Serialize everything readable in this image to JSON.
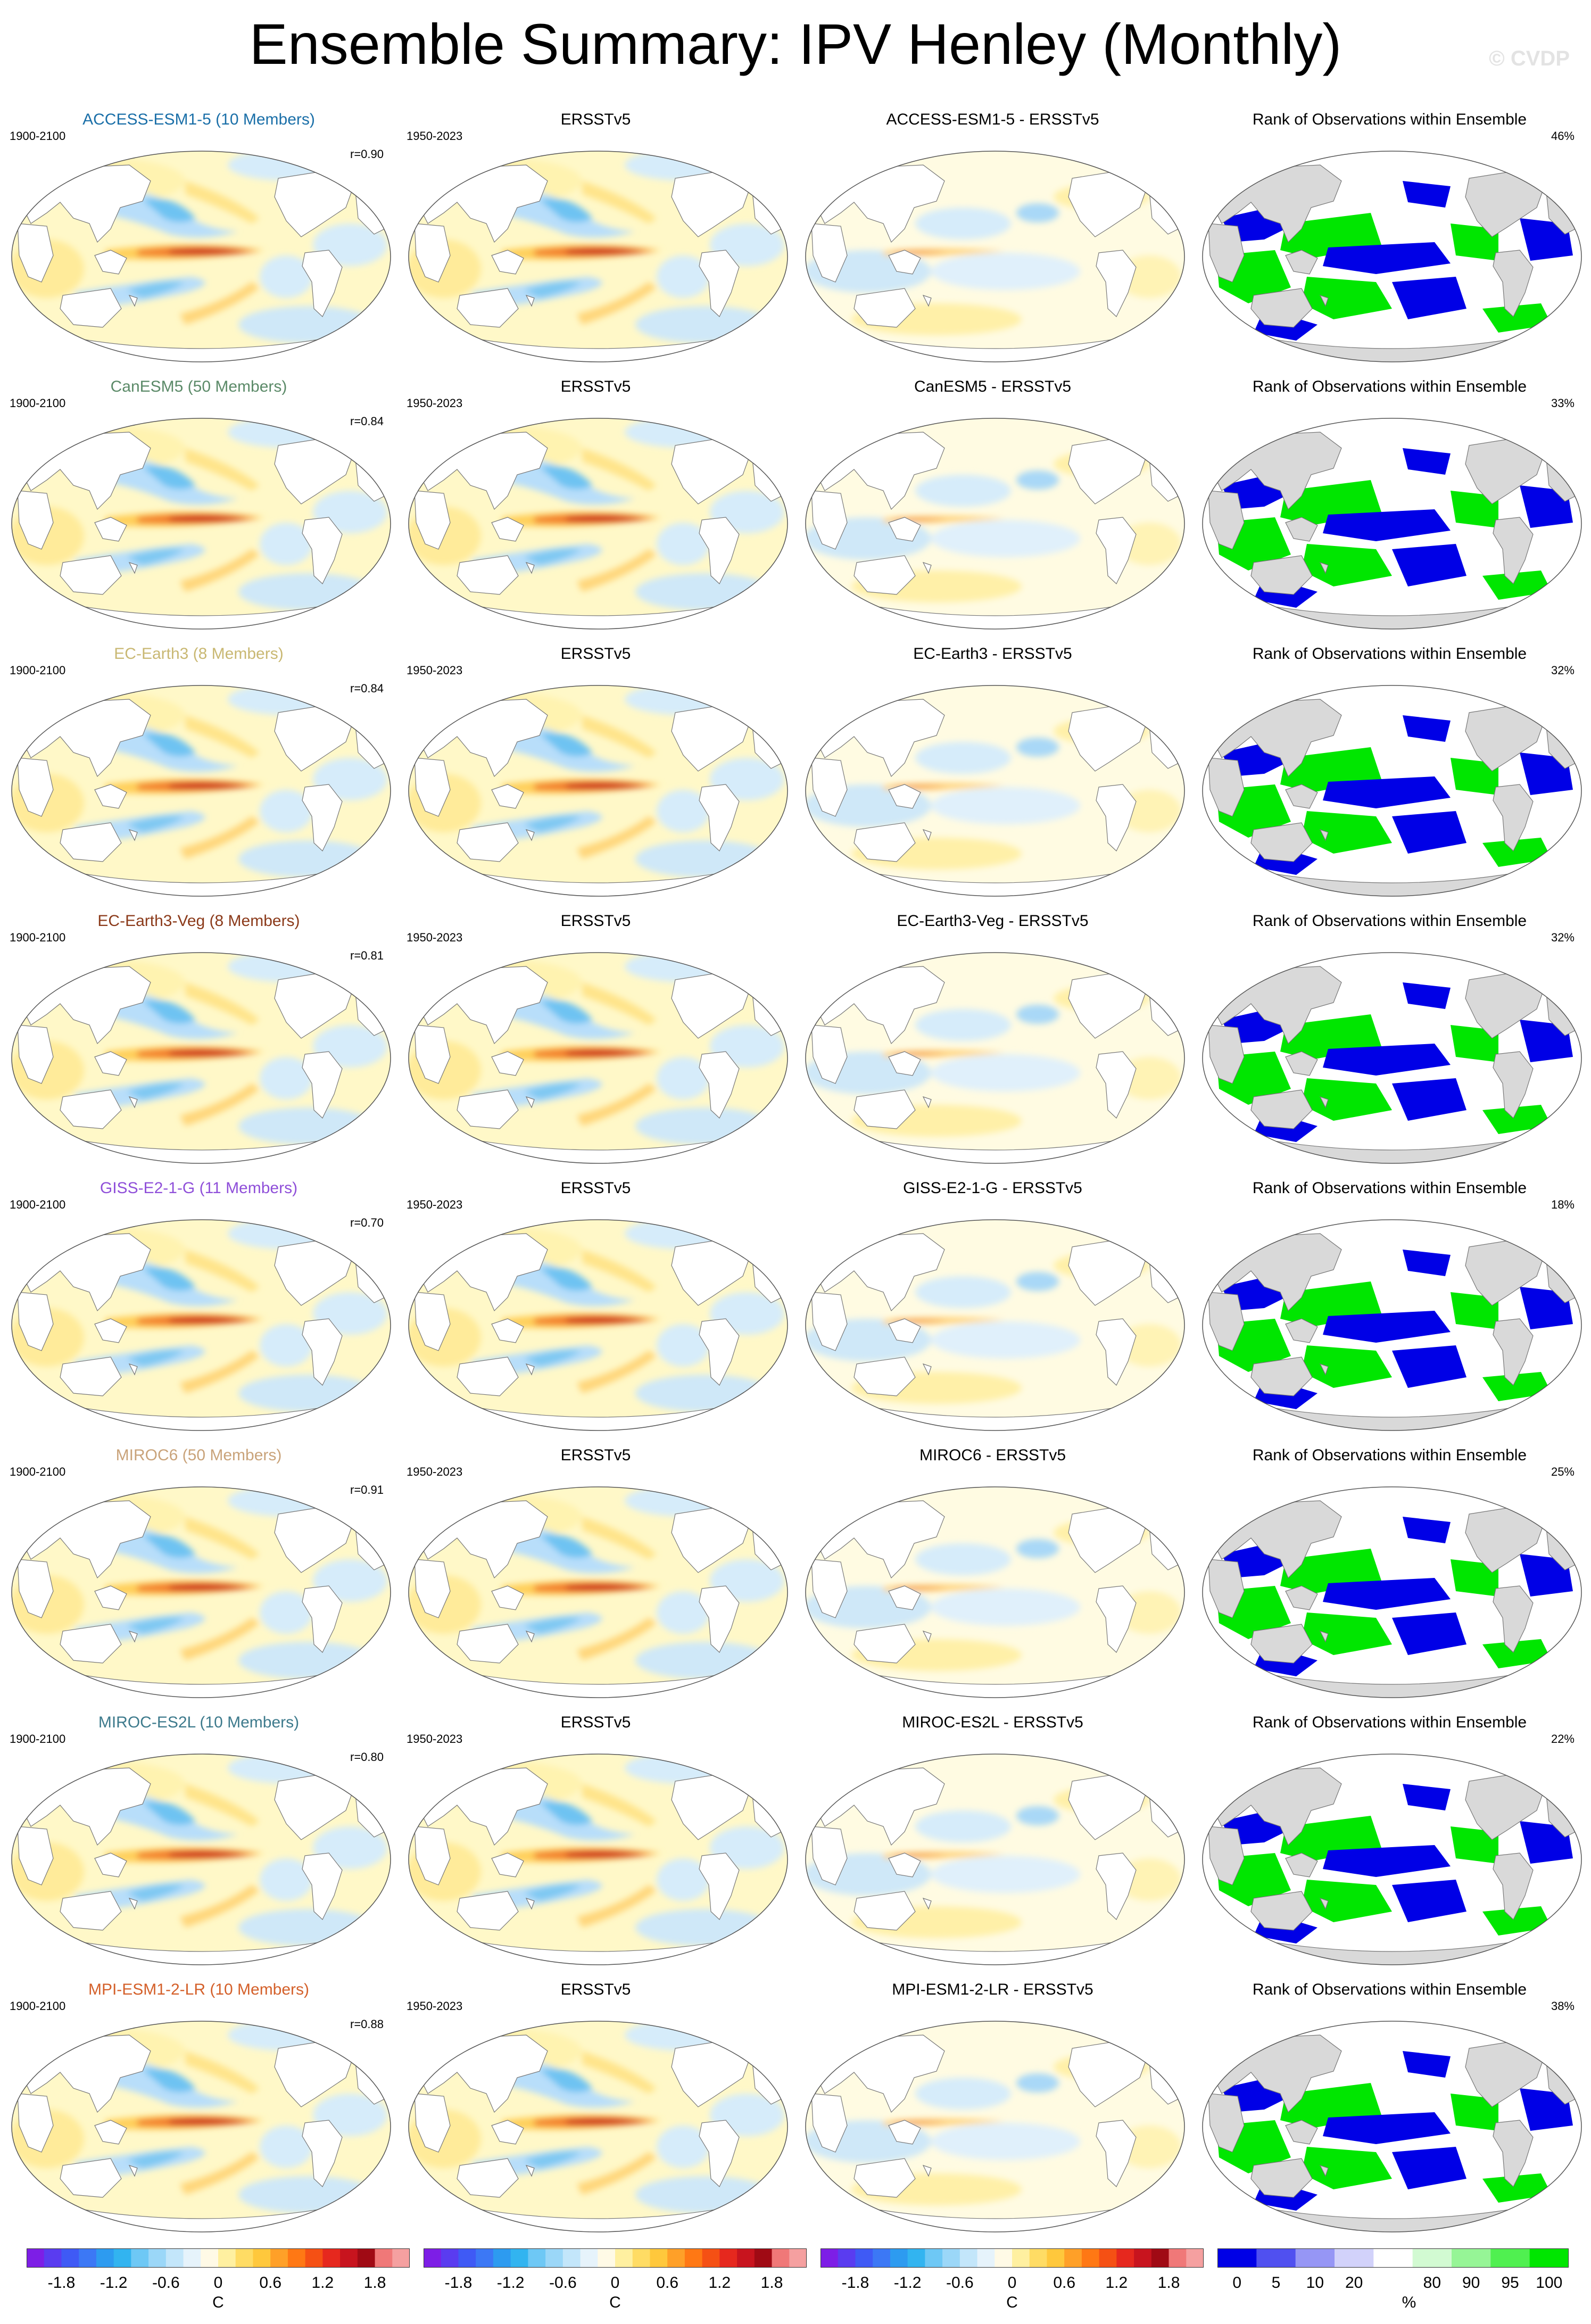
{
  "page": {
    "title": "Ensemble Summary: IPV Henley (Monthly)",
    "watermark": "© CVDP"
  },
  "colors": {
    "cold_strong": "#1e9ee8",
    "cold_mid": "#8ccdf5",
    "cold_light": "#cfe8f8",
    "warm_light": "#fff6b0",
    "warm_mid": "#f8c14a",
    "warm_strong": "#e8421c",
    "hot": "#b50010",
    "rank_low": "#0000e6",
    "rank_high": "#00f000",
    "land": "#d9d9d9"
  },
  "rows": [
    {
      "model": "ACCESS-ESM1-5 (10 Members)",
      "model_color": "#1a6fa8",
      "model_period": "1900-2100",
      "obs_period": "1950-2023",
      "corr": "r=0.90",
      "obs_title": "ERSSTv5",
      "diff_title": "ACCESS-ESM1-5 - ERSSTv5",
      "rank_title": "Rank of Observations within Ensemble",
      "rank_pct": "46%"
    },
    {
      "model": "CanESM5 (50 Members)",
      "model_color": "#5b8a68",
      "model_period": "1900-2100",
      "obs_period": "1950-2023",
      "corr": "r=0.84",
      "obs_title": "ERSSTv5",
      "diff_title": "CanESM5 - ERSSTv5",
      "rank_title": "Rank of Observations within Ensemble",
      "rank_pct": "33%"
    },
    {
      "model": "EC-Earth3 (8 Members)",
      "model_color": "#c9b873",
      "model_period": "1900-2100",
      "obs_period": "1950-2023",
      "corr": "r=0.84",
      "obs_title": "ERSSTv5",
      "diff_title": "EC-Earth3 - ERSSTv5",
      "rank_title": "Rank of Observations within Ensemble",
      "rank_pct": "32%"
    },
    {
      "model": "EC-Earth3-Veg (8 Members)",
      "model_color": "#8b3a1a",
      "model_period": "1900-2100",
      "obs_period": "1950-2023",
      "corr": "r=0.81",
      "obs_title": "ERSSTv5",
      "diff_title": "EC-Earth3-Veg - ERSSTv5",
      "rank_title": "Rank of Observations within Ensemble",
      "rank_pct": "32%"
    },
    {
      "model": "GISS-E2-1-G (11 Members)",
      "model_color": "#8f4fd9",
      "model_period": "1900-2100",
      "obs_period": "1950-2023",
      "corr": "r=0.70",
      "obs_title": "ERSSTv5",
      "diff_title": "GISS-E2-1-G - ERSSTv5",
      "rank_title": "Rank of Observations within Ensemble",
      "rank_pct": "18%"
    },
    {
      "model": "MIROC6 (50 Members)",
      "model_color": "#c9a37a",
      "model_period": "1900-2100",
      "obs_period": "1950-2023",
      "corr": "r=0.91",
      "obs_title": "ERSSTv5",
      "diff_title": "MIROC6 - ERSSTv5",
      "rank_title": "Rank of Observations within Ensemble",
      "rank_pct": "25%"
    },
    {
      "model": "MIROC-ES2L (10 Members)",
      "model_color": "#3d7a8c",
      "model_period": "1900-2100",
      "obs_period": "1950-2023",
      "corr": "r=0.80",
      "obs_title": "ERSSTv5",
      "diff_title": "MIROC-ES2L - ERSSTv5",
      "rank_title": "Rank of Observations within Ensemble",
      "rank_pct": "22%"
    },
    {
      "model": "MPI-ESM1-2-LR (10 Members)",
      "model_color": "#d4602a",
      "model_period": "1900-2100",
      "obs_period": "1950-2023",
      "corr": "r=0.88",
      "obs_title": "ERSSTv5",
      "diff_title": "MPI-ESM1-2-LR - ERSSTv5",
      "rank_title": "Rank of Observations within Ensemble",
      "rank_pct": "38%"
    }
  ],
  "colorbars": {
    "sst_ticks": [
      "-1.8",
      "-1.2",
      "-0.6",
      "0",
      "0.6",
      "1.2",
      "1.8"
    ],
    "sst_unit": "C",
    "sst_colors": [
      "#7d1ee6",
      "#5a3cf0",
      "#3f5af5",
      "#3c78f5",
      "#2d9bf0",
      "#32b4f0",
      "#6ec8f5",
      "#9bd7f8",
      "#c3e6fa",
      "#e6f3fb",
      "#fffae6",
      "#fff0a0",
      "#ffdc64",
      "#ffc83c",
      "#ffa028",
      "#ff7814",
      "#f55014",
      "#e6281e",
      "#c8141e",
      "#a00a14",
      "#f07878",
      "#f5a0a0"
    ],
    "rank_ticks": [
      "0",
      "5",
      "10",
      "20",
      "80",
      "90",
      "95",
      "100"
    ],
    "rank_unit": "%",
    "rank_colors": [
      "#0000e6",
      "#5050f0",
      "#9696f5",
      "#d2d2fa",
      "#ffffff",
      "#d2fad2",
      "#96f596",
      "#50f050",
      "#00e600"
    ]
  }
}
